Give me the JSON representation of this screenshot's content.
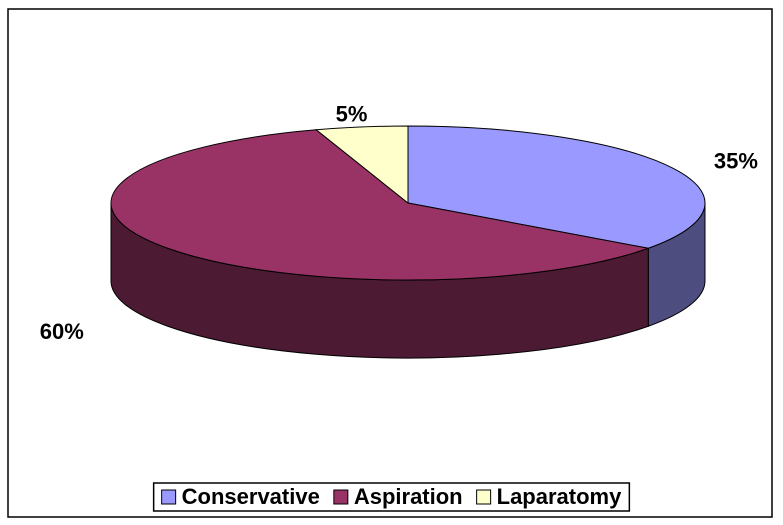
{
  "chart_data": {
    "type": "pie",
    "categories": [
      "Conservative",
      "Aspiration",
      "Laparatomy"
    ],
    "values": [
      35,
      60,
      5
    ],
    "value_labels": [
      "35%",
      "60%",
      "5%"
    ],
    "colors": [
      "#9999ff",
      "#993366",
      "#ffffcc"
    ],
    "legend": "bottom"
  }
}
